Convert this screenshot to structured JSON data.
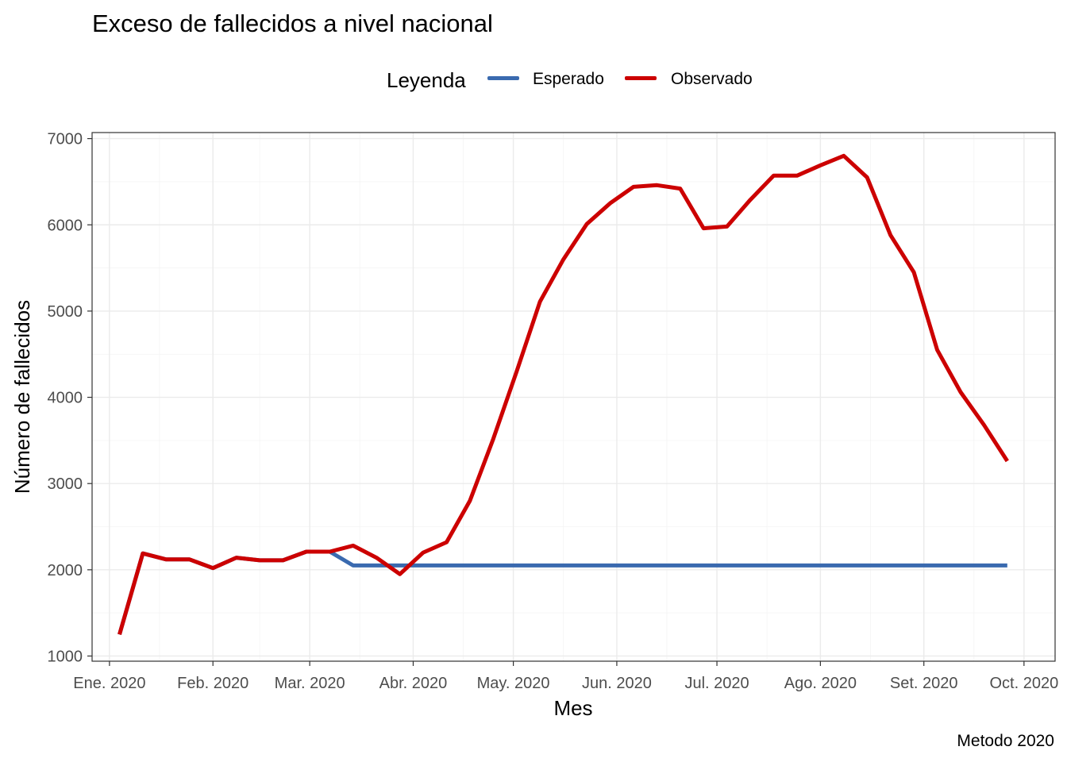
{
  "title": "Exceso de fallecidos a nivel nacional",
  "caption": "Metodo 2020",
  "legend": {
    "title": "Leyenda",
    "items": [
      {
        "label": "Esperado",
        "color": "#3a6aaf"
      },
      {
        "label": "Observado",
        "color": "#cc0000"
      }
    ]
  },
  "chart_data": {
    "type": "line",
    "title": "Exceso de fallecidos a nivel nacional",
    "xlabel": "Mes",
    "ylabel": "Número de fallecidos",
    "ylim": [
      1000,
      7000
    ],
    "yticks": [
      1000,
      2000,
      3000,
      4000,
      5000,
      6000,
      7000
    ],
    "xlim": [
      "2020-01-01",
      "2020-10-01"
    ],
    "xticks": [
      {
        "date": "2020-01-01",
        "label": "Ene. 2020"
      },
      {
        "date": "2020-02-01",
        "label": "Feb. 2020"
      },
      {
        "date": "2020-03-01",
        "label": "Mar. 2020"
      },
      {
        "date": "2020-04-01",
        "label": "Abr. 2020"
      },
      {
        "date": "2020-05-01",
        "label": "May. 2020"
      },
      {
        "date": "2020-06-01",
        "label": "Jun. 2020"
      },
      {
        "date": "2020-07-01",
        "label": "Jul. 2020"
      },
      {
        "date": "2020-08-01",
        "label": "Ago. 2020"
      },
      {
        "date": "2020-09-01",
        "label": "Set. 2020"
      },
      {
        "date": "2020-10-01",
        "label": "Oct. 2020"
      }
    ],
    "grid": true,
    "legend_position": "top",
    "x": [
      "2020-01-04",
      "2020-01-11",
      "2020-01-18",
      "2020-01-25",
      "2020-02-01",
      "2020-02-08",
      "2020-02-15",
      "2020-02-22",
      "2020-02-29",
      "2020-03-07",
      "2020-03-14",
      "2020-03-21",
      "2020-03-28",
      "2020-04-04",
      "2020-04-11",
      "2020-04-18",
      "2020-04-25",
      "2020-05-02",
      "2020-05-09",
      "2020-05-16",
      "2020-05-23",
      "2020-05-30",
      "2020-06-06",
      "2020-06-13",
      "2020-06-20",
      "2020-06-27",
      "2020-07-04",
      "2020-07-11",
      "2020-07-18",
      "2020-07-25",
      "2020-08-01",
      "2020-08-08",
      "2020-08-15",
      "2020-08-22",
      "2020-08-29",
      "2020-09-05",
      "2020-09-12",
      "2020-09-19",
      "2020-09-26"
    ],
    "series": [
      {
        "name": "Esperado",
        "color": "#3a6aaf",
        "values": [
          1250,
          2190,
          2120,
          2120,
          2020,
          2140,
          2110,
          2110,
          2210,
          2210,
          2050,
          2050,
          2050,
          2050,
          2050,
          2050,
          2050,
          2050,
          2050,
          2050,
          2050,
          2050,
          2050,
          2050,
          2050,
          2050,
          2050,
          2050,
          2050,
          2050,
          2050,
          2050,
          2050,
          2050,
          2050,
          2050,
          2050,
          2050,
          2050
        ]
      },
      {
        "name": "Observado",
        "color": "#cc0000",
        "values": [
          1250,
          2190,
          2120,
          2120,
          2020,
          2140,
          2110,
          2110,
          2210,
          2210,
          2280,
          2140,
          1950,
          2200,
          2320,
          2800,
          3520,
          4300,
          5110,
          5600,
          6010,
          6250,
          6440,
          6460,
          6420,
          5960,
          5980,
          6290,
          6570,
          6570,
          6690,
          6800,
          6550,
          5880,
          5450,
          4550,
          4060,
          3680,
          3260
        ]
      }
    ]
  }
}
